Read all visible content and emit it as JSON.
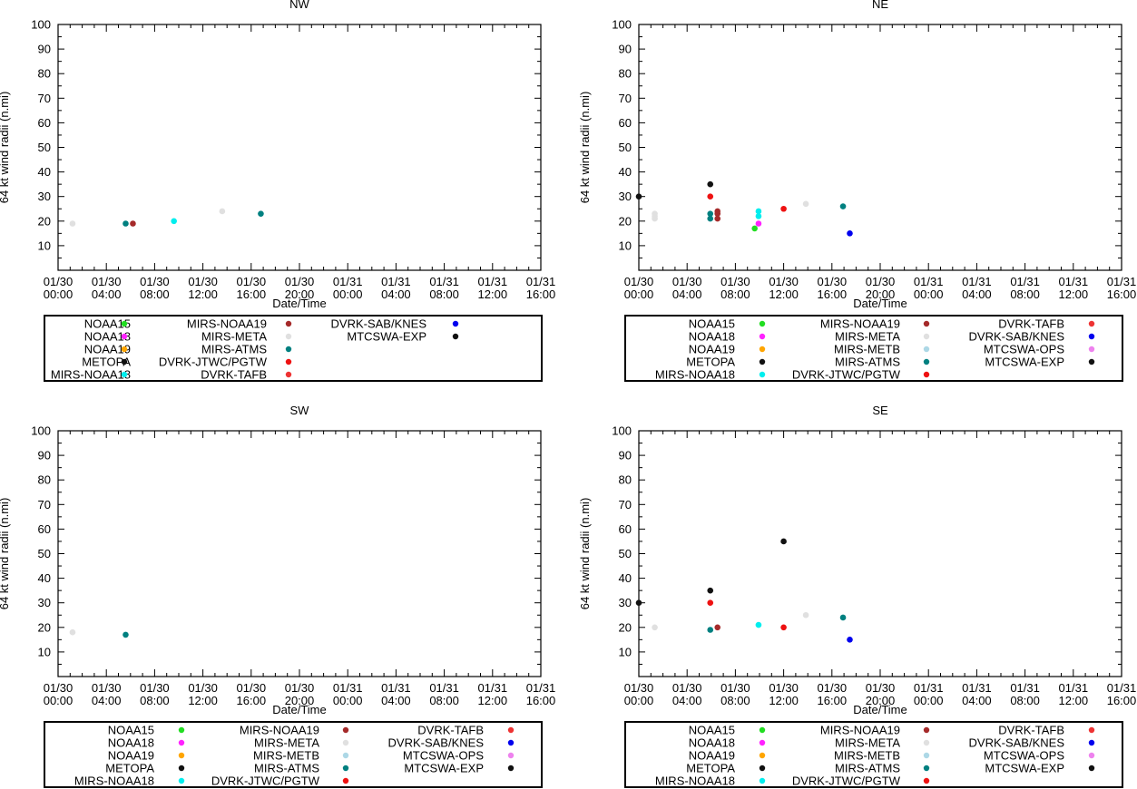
{
  "colors": {
    "NOAA15": "#22dd22",
    "NOAA18": "#ff22ff",
    "NOAA19": "#ffa500",
    "METOPA": "#111111",
    "MIRS-NOAA18": "#00eeee",
    "MIRS-NOAA19": "#a52a2a",
    "MIRS-META": "#e0e0e0",
    "MIRS-METB": "#add8e6",
    "MIRS-ATMS": "#008080",
    "DVRK-JTWC/PGTW": "#ee1111",
    "DVRK-TAFB": "#ee3333",
    "DVRK-SAB/KNES": "#0000ee",
    "MTCSWA-OPS": "#ee82ee",
    "MTCSWA-EXP": "#111111"
  },
  "chart_data": [
    {
      "type": "scatter",
      "title": "NW",
      "xlabel": "Date/Time",
      "ylabel": "64 kt wind radii (n.mi)",
      "ylim": [
        0,
        100
      ],
      "xlim_hours": [
        0,
        100
      ],
      "yticks": [
        10,
        20,
        30,
        40,
        50,
        60,
        70,
        80,
        90,
        100
      ],
      "xticks": [
        {
          "hours": 0,
          "date": "01/30",
          "time": "00:00"
        },
        {
          "hours": 10,
          "date": "01/30",
          "time": "04:00"
        },
        {
          "hours": 20,
          "date": "01/30",
          "time": "08:00"
        },
        {
          "hours": 30,
          "date": "01/30",
          "time": "12:00"
        },
        {
          "hours": 40,
          "date": "01/30",
          "time": "16:00"
        },
        {
          "hours": 50,
          "date": "01/30",
          "time": "20:00"
        },
        {
          "hours": 60,
          "date": "01/31",
          "time": "00:00"
        },
        {
          "hours": 70,
          "date": "01/31",
          "time": "04:00"
        },
        {
          "hours": 80,
          "date": "01/31",
          "time": "08:00"
        },
        {
          "hours": 90,
          "date": "01/31",
          "time": "12:00"
        },
        {
          "hours": 100,
          "date": "01/31",
          "time": "16:00"
        }
      ],
      "points": [
        {
          "series": "MIRS-META",
          "x": 3,
          "y": 19
        },
        {
          "series": "MIRS-ATMS",
          "x": 14,
          "y": 19
        },
        {
          "series": "MIRS-NOAA19",
          "x": 15.5,
          "y": 19
        },
        {
          "series": "MIRS-NOAA18",
          "x": 24,
          "y": 20
        },
        {
          "series": "MIRS-META",
          "x": 34,
          "y": 24
        },
        {
          "series": "MIRS-ATMS",
          "x": 42,
          "y": 23
        }
      ],
      "legend": [
        [
          "NOAA15",
          "NOAA18",
          "NOAA19",
          "METOPA",
          "MIRS-NOAA18"
        ],
        [
          "MIRS-NOAA19",
          "MIRS-META",
          "MIRS-ATMS",
          "DVRK-JTWC/PGTW",
          "DVRK-TAFB"
        ],
        [
          "DVRK-SAB/KNES",
          "MTCSWA-EXP"
        ]
      ]
    },
    {
      "type": "scatter",
      "title": "NE",
      "xlabel": "Date/Time",
      "ylabel": "64 kt wind radii (n.mi)",
      "ylim": [
        0,
        100
      ],
      "xlim_hours": [
        0,
        100
      ],
      "yticks": [
        10,
        20,
        30,
        40,
        50,
        60,
        70,
        80,
        90,
        100
      ],
      "xticks": [
        {
          "hours": 0,
          "date": "01/30",
          "time": "00:00"
        },
        {
          "hours": 10,
          "date": "01/30",
          "time": "04:00"
        },
        {
          "hours": 20,
          "date": "01/30",
          "time": "08:00"
        },
        {
          "hours": 30,
          "date": "01/30",
          "time": "12:00"
        },
        {
          "hours": 40,
          "date": "01/30",
          "time": "16:00"
        },
        {
          "hours": 50,
          "date": "01/30",
          "time": "20:00"
        },
        {
          "hours": 60,
          "date": "01/31",
          "time": "00:00"
        },
        {
          "hours": 70,
          "date": "01/31",
          "time": "04:00"
        },
        {
          "hours": 80,
          "date": "01/31",
          "time": "08:00"
        },
        {
          "hours": 90,
          "date": "01/31",
          "time": "12:00"
        },
        {
          "hours": 100,
          "date": "01/31",
          "time": "16:00"
        }
      ],
      "points": [
        {
          "series": "METOPA",
          "x": 0,
          "y": 30
        },
        {
          "series": "MIRS-META",
          "x": 3.3,
          "y": 23
        },
        {
          "series": "MIRS-META",
          "x": 3.3,
          "y": 22
        },
        {
          "series": "MIRS-META",
          "x": 3.3,
          "y": 21
        },
        {
          "series": "METOPA",
          "x": 14.8,
          "y": 35
        },
        {
          "series": "DVRK-JTWC/PGTW",
          "x": 14.8,
          "y": 30
        },
        {
          "series": "MIRS-ATMS",
          "x": 14.8,
          "y": 23
        },
        {
          "series": "MIRS-ATMS",
          "x": 14.8,
          "y": 21
        },
        {
          "series": "MIRS-NOAA19",
          "x": 16.3,
          "y": 24
        },
        {
          "series": "MIRS-NOAA19",
          "x": 16.3,
          "y": 23
        },
        {
          "series": "MIRS-NOAA19",
          "x": 16.3,
          "y": 21
        },
        {
          "series": "NOAA15",
          "x": 24,
          "y": 17
        },
        {
          "series": "NOAA18",
          "x": 24.8,
          "y": 19
        },
        {
          "series": "MIRS-NOAA18",
          "x": 24.8,
          "y": 24
        },
        {
          "series": "MIRS-NOAA18",
          "x": 24.8,
          "y": 22
        },
        {
          "series": "DVRK-JTWC/PGTW",
          "x": 30,
          "y": 25
        },
        {
          "series": "MIRS-META",
          "x": 34.6,
          "y": 27
        },
        {
          "series": "MIRS-ATMS",
          "x": 42.3,
          "y": 26
        },
        {
          "series": "DVRK-SAB/KNES",
          "x": 43.7,
          "y": 15
        }
      ],
      "legend": [
        [
          "NOAA15",
          "NOAA18",
          "NOAA19",
          "METOPA",
          "MIRS-NOAA18"
        ],
        [
          "MIRS-NOAA19",
          "MIRS-META",
          "MIRS-METB",
          "MIRS-ATMS",
          "DVRK-JTWC/PGTW"
        ],
        [
          "DVRK-TAFB",
          "DVRK-SAB/KNES",
          "MTCSWA-OPS",
          "MTCSWA-EXP"
        ]
      ]
    },
    {
      "type": "scatter",
      "title": "SW",
      "xlabel": "Date/Time",
      "ylabel": "64 kt wind radii (n.mi)",
      "ylim": [
        0,
        100
      ],
      "xlim_hours": [
        0,
        100
      ],
      "yticks": [
        10,
        20,
        30,
        40,
        50,
        60,
        70,
        80,
        90,
        100
      ],
      "xticks": [
        {
          "hours": 0,
          "date": "01/30",
          "time": "00:00"
        },
        {
          "hours": 10,
          "date": "01/30",
          "time": "04:00"
        },
        {
          "hours": 20,
          "date": "01/30",
          "time": "08:00"
        },
        {
          "hours": 30,
          "date": "01/30",
          "time": "12:00"
        },
        {
          "hours": 40,
          "date": "01/30",
          "time": "16:00"
        },
        {
          "hours": 50,
          "date": "01/30",
          "time": "20:00"
        },
        {
          "hours": 60,
          "date": "01/31",
          "time": "00:00"
        },
        {
          "hours": 70,
          "date": "01/31",
          "time": "04:00"
        },
        {
          "hours": 80,
          "date": "01/31",
          "time": "08:00"
        },
        {
          "hours": 90,
          "date": "01/31",
          "time": "12:00"
        },
        {
          "hours": 100,
          "date": "01/31",
          "time": "16:00"
        }
      ],
      "points": [
        {
          "series": "MIRS-META",
          "x": 3,
          "y": 18
        },
        {
          "series": "MIRS-ATMS",
          "x": 14,
          "y": 17
        }
      ],
      "legend": [
        [
          "NOAA15",
          "NOAA18",
          "NOAA19",
          "METOPA",
          "MIRS-NOAA18"
        ],
        [
          "MIRS-NOAA19",
          "MIRS-META",
          "MIRS-METB",
          "MIRS-ATMS",
          "DVRK-JTWC/PGTW"
        ],
        [
          "DVRK-TAFB",
          "DVRK-SAB/KNES",
          "MTCSWA-OPS",
          "MTCSWA-EXP"
        ]
      ]
    },
    {
      "type": "scatter",
      "title": "SE",
      "xlabel": "Date/Time",
      "ylabel": "64 kt wind radii (n.mi)",
      "ylim": [
        0,
        100
      ],
      "xlim_hours": [
        0,
        100
      ],
      "yticks": [
        10,
        20,
        30,
        40,
        50,
        60,
        70,
        80,
        90,
        100
      ],
      "xticks": [
        {
          "hours": 0,
          "date": "01/30",
          "time": "00:00"
        },
        {
          "hours": 10,
          "date": "01/30",
          "time": "04:00"
        },
        {
          "hours": 20,
          "date": "01/30",
          "time": "08:00"
        },
        {
          "hours": 30,
          "date": "01/30",
          "time": "12:00"
        },
        {
          "hours": 40,
          "date": "01/30",
          "time": "16:00"
        },
        {
          "hours": 50,
          "date": "01/30",
          "time": "20:00"
        },
        {
          "hours": 60,
          "date": "01/31",
          "time": "00:00"
        },
        {
          "hours": 70,
          "date": "01/31",
          "time": "04:00"
        },
        {
          "hours": 80,
          "date": "01/31",
          "time": "08:00"
        },
        {
          "hours": 90,
          "date": "01/31",
          "time": "12:00"
        },
        {
          "hours": 100,
          "date": "01/31",
          "time": "16:00"
        }
      ],
      "points": [
        {
          "series": "METOPA",
          "x": 0,
          "y": 30
        },
        {
          "series": "MIRS-META",
          "x": 3.3,
          "y": 20
        },
        {
          "series": "METOPA",
          "x": 14.8,
          "y": 35
        },
        {
          "series": "DVRK-JTWC/PGTW",
          "x": 14.8,
          "y": 30
        },
        {
          "series": "MIRS-ATMS",
          "x": 14.8,
          "y": 19
        },
        {
          "series": "MIRS-NOAA19",
          "x": 16.3,
          "y": 20
        },
        {
          "series": "MIRS-NOAA18",
          "x": 24.8,
          "y": 21
        },
        {
          "series": "METOPA",
          "x": 30,
          "y": 55
        },
        {
          "series": "DVRK-JTWC/PGTW",
          "x": 30,
          "y": 20
        },
        {
          "series": "MIRS-META",
          "x": 34.6,
          "y": 25
        },
        {
          "series": "MIRS-ATMS",
          "x": 42.3,
          "y": 24
        },
        {
          "series": "DVRK-SAB/KNES",
          "x": 43.7,
          "y": 15
        }
      ],
      "legend": [
        [
          "NOAA15",
          "NOAA18",
          "NOAA19",
          "METOPA",
          "MIRS-NOAA18"
        ],
        [
          "MIRS-NOAA19",
          "MIRS-META",
          "MIRS-METB",
          "MIRS-ATMS",
          "DVRK-JTWC/PGTW"
        ],
        [
          "DVRK-TAFB",
          "DVRK-SAB/KNES",
          "MTCSWA-OPS",
          "MTCSWA-EXP"
        ]
      ]
    }
  ]
}
